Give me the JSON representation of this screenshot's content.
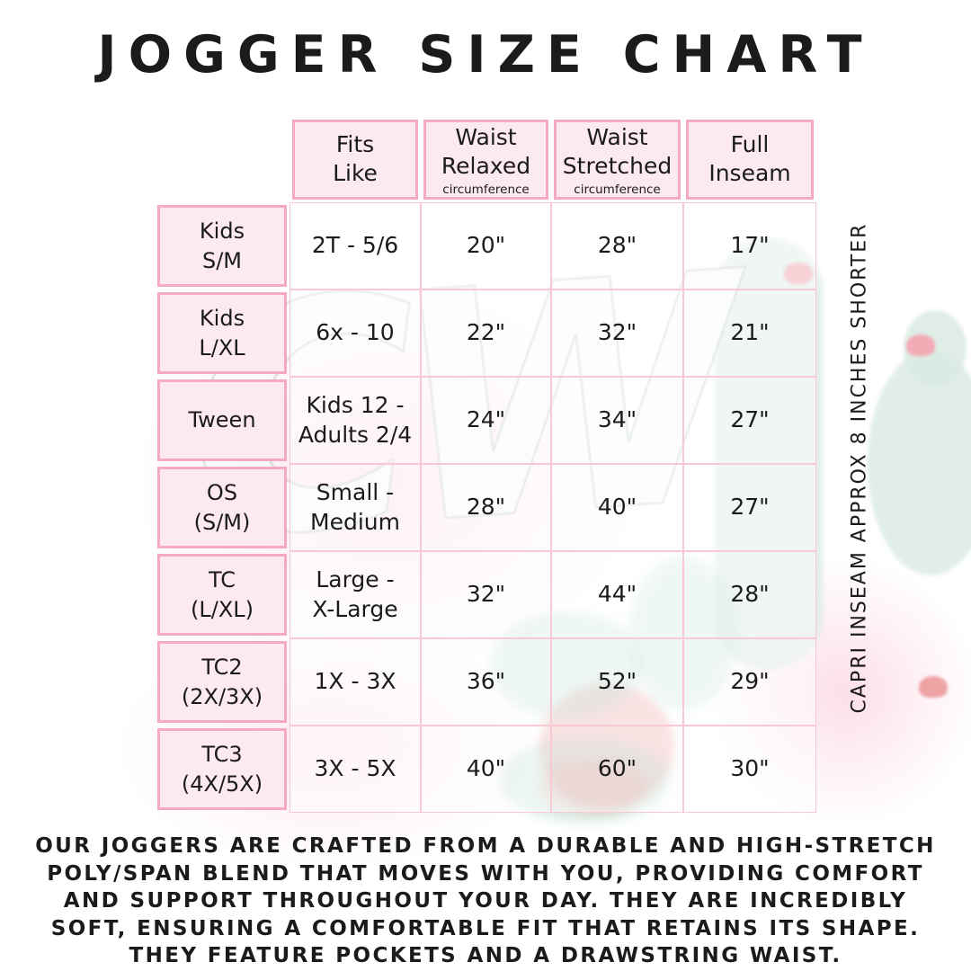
{
  "page_title": "JOGGER SIZE CHART",
  "watermark_text": "CW",
  "side_note": "CAPRI INSEAM APPROX 8 INCHES SHORTER",
  "description": "OUR JOGGERS ARE CRAFTED FROM A DURABLE AND HIGH-STRETCH POLY/SPAN BLEND THAT MOVES WITH YOU, PROVIDING COMFORT AND SUPPORT THROUGHOUT YOUR DAY. THEY ARE INCREDIBLY SOFT, ENSURING A COMFORTABLE FIT THAT RETAINS ITS SHAPE. THEY FEATURE POCKETS AND A DRAWSTRING WAIST.",
  "theme": {
    "ink": "#1b1b1b",
    "cellPink": "#fdeaf1",
    "borderPink": "#f6a9c4",
    "gridPink": "#f9c8d7",
    "mint": "#d9eae1",
    "coral": "#f4a0ab",
    "red": "#e06060",
    "washPink": "#fbd3de"
  },
  "table": {
    "headers": [
      {
        "title": "Fits\nLike",
        "sub": ""
      },
      {
        "title": "Waist\nRelaxed",
        "sub": "circumference"
      },
      {
        "title": "Waist\nStretched",
        "sub": "circumference"
      },
      {
        "title": "Full\nInseam",
        "sub": ""
      }
    ],
    "rows": [
      {
        "label": "Kids\nS/M",
        "fits_like": "2T - 5/6",
        "waist_relaxed": "20\"",
        "waist_stretched": "28\"",
        "full_inseam": "17\""
      },
      {
        "label": "Kids\nL/XL",
        "fits_like": "6x - 10",
        "waist_relaxed": "22\"",
        "waist_stretched": "32\"",
        "full_inseam": "21\""
      },
      {
        "label": "Tween",
        "fits_like": "Kids 12 -\nAdults 2/4",
        "waist_relaxed": "24\"",
        "waist_stretched": "34\"",
        "full_inseam": "27\""
      },
      {
        "label": "OS\n(S/M)",
        "fits_like": "Small -\nMedium",
        "waist_relaxed": "28\"",
        "waist_stretched": "40\"",
        "full_inseam": "27\""
      },
      {
        "label": "TC\n(L/XL)",
        "fits_like": "Large -\nX-Large",
        "waist_relaxed": "32\"",
        "waist_stretched": "44\"",
        "full_inseam": "28\""
      },
      {
        "label": "TC2\n(2X/3X)",
        "fits_like": "1X - 3X",
        "waist_relaxed": "36\"",
        "waist_stretched": "52\"",
        "full_inseam": "29\""
      },
      {
        "label": "TC3\n(4X/5X)",
        "fits_like": "3X - 5X",
        "waist_relaxed": "40\"",
        "waist_stretched": "60\"",
        "full_inseam": "30\""
      }
    ]
  },
  "chart_data": {
    "type": "table",
    "title": "JOGGER SIZE CHART",
    "units": "inches",
    "columns": [
      "Size",
      "Fits Like",
      "Waist Relaxed circumference",
      "Waist Stretched circumference",
      "Full Inseam"
    ],
    "rows": [
      [
        "Kids S/M",
        "2T - 5/6",
        20,
        28,
        17
      ],
      [
        "Kids L/XL",
        "6x - 10",
        22,
        32,
        21
      ],
      [
        "Tween",
        "Kids 12 - Adults 2/4",
        24,
        34,
        27
      ],
      [
        "OS (S/M)",
        "Small - Medium",
        28,
        40,
        27
      ],
      [
        "TC (L/XL)",
        "Large - X-Large",
        32,
        44,
        28
      ],
      [
        "TC2 (2X/3X)",
        "1X - 3X",
        36,
        52,
        29
      ],
      [
        "TC3 (4X/5X)",
        "3X - 5X",
        40,
        60,
        30
      ]
    ],
    "notes": [
      "CAPRI INSEAM APPROX 8 INCHES SHORTER"
    ]
  }
}
